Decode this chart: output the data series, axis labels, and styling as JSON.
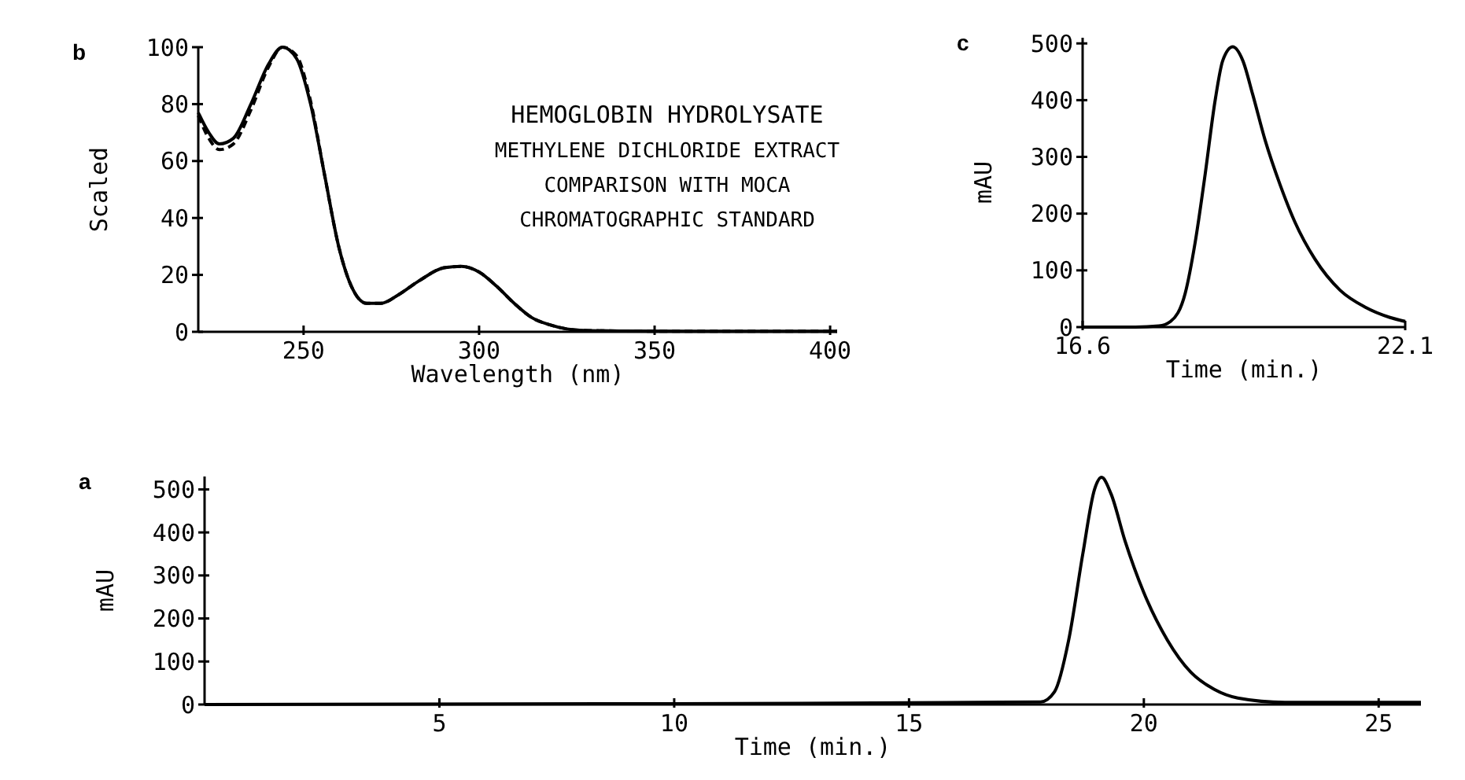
{
  "chart_data": [
    {
      "type": "line",
      "title": "b",
      "xlabel": "Wavelength (nm)",
      "ylabel": "Scaled",
      "xlim": [
        220,
        402
      ],
      "ylim": [
        0,
        100
      ],
      "xticks": [
        250,
        300,
        350,
        400
      ],
      "yticks": [
        0,
        20,
        40,
        60,
        80,
        100
      ],
      "grid": false,
      "marker": "none",
      "annotations": [
        "HEMOGLOBIN HYDROLYSATE",
        "METHYLENE DICHLORIDE EXTRACT",
        "COMPARISON WITH MOCA",
        "CHROMATOGRAPHIC STANDARD"
      ],
      "series": [
        {
          "color": "#000000",
          "line_style": "solid",
          "x": [
            220,
            223,
            226,
            230,
            235,
            240,
            244,
            248,
            252,
            256,
            260,
            264,
            268,
            272,
            277,
            283,
            290,
            295,
            300,
            305,
            310,
            315,
            320,
            325,
            330,
            340,
            360,
            380,
            402
          ],
          "values": [
            77,
            70,
            66,
            68,
            80,
            94,
            100,
            96,
            80,
            55,
            30,
            15,
            10,
            10,
            13,
            18,
            22.5,
            23,
            21,
            16,
            10,
            5,
            2.5,
            1,
            0.5,
            0.3,
            0.2,
            0.2,
            0.2
          ]
        },
        {
          "color": "#000000",
          "line_style": "dashed",
          "x": [
            220,
            223,
            226,
            230,
            235,
            240,
            244,
            248,
            252,
            256,
            260,
            264,
            268,
            272,
            277,
            283,
            290,
            295,
            300,
            305,
            310,
            315,
            320,
            325,
            330,
            340,
            360,
            380,
            402
          ],
          "values": [
            76,
            68,
            64,
            66,
            78,
            93,
            100,
            97,
            81,
            55,
            30,
            15,
            10,
            10,
            13,
            18,
            22.5,
            23,
            21,
            16,
            10,
            5,
            2.5,
            1,
            0.5,
            0.3,
            0.2,
            0.2,
            0.2
          ]
        }
      ]
    },
    {
      "type": "line",
      "title": "c",
      "xlabel": "Time (min.)",
      "ylabel": "mAU",
      "xlim": [
        16.6,
        22.1
      ],
      "ylim": [
        0,
        510
      ],
      "xticks": [
        16.6,
        22.1
      ],
      "yticks": [
        0,
        100,
        200,
        300,
        400,
        500
      ],
      "grid": false,
      "marker": "none",
      "series": [
        {
          "color": "#000000",
          "line_style": "solid",
          "x": [
            16.6,
            17.5,
            17.9,
            18.1,
            18.35,
            18.52,
            18.69,
            18.86,
            18.99,
            19.16,
            19.33,
            19.5,
            19.71,
            19.97,
            20.22,
            20.56,
            20.99,
            21.42,
            21.84,
            22.1
          ],
          "values": [
            0,
            0,
            2,
            10,
            60,
            150,
            270,
            400,
            470,
            494,
            470,
            410,
            330,
            250,
            185,
            120,
            65,
            35,
            17,
            10
          ]
        }
      ]
    },
    {
      "type": "line",
      "title": "a",
      "xlabel": "Time (min.)",
      "ylabel": "mAU",
      "xlim": [
        0,
        25.9
      ],
      "ylim": [
        0,
        530
      ],
      "xticks": [
        5,
        10,
        15,
        20,
        25
      ],
      "yticks": [
        0,
        100,
        200,
        300,
        400,
        500
      ],
      "grid": false,
      "marker": "none",
      "series": [
        {
          "color": "#000000",
          "line_style": "solid",
          "x": [
            0,
            10,
            15,
            17.8,
            18.1,
            18.4,
            18.7,
            18.95,
            19.1,
            19.3,
            19.6,
            20,
            20.5,
            21,
            21.5,
            22,
            23,
            25.9
          ],
          "values": [
            0,
            2,
            4,
            6,
            30,
            150,
            350,
            500,
            528,
            490,
            380,
            260,
            150,
            75,
            35,
            15,
            5,
            5
          ]
        }
      ]
    }
  ]
}
